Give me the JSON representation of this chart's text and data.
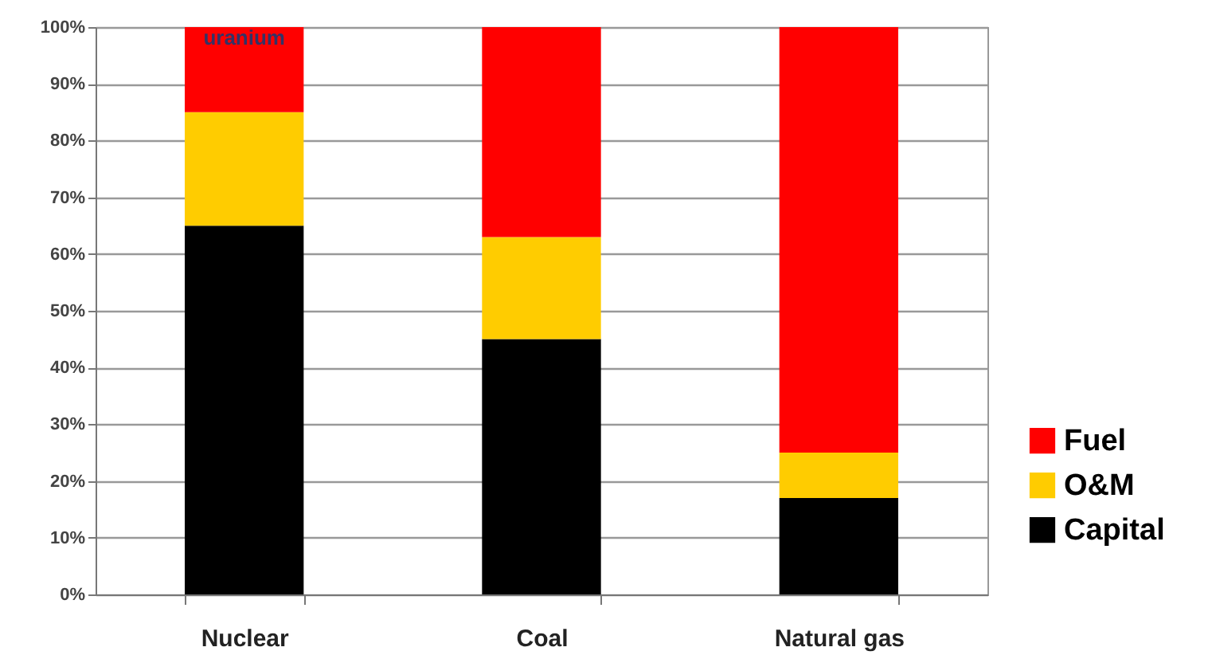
{
  "chart_data": {
    "type": "bar",
    "stacked": true,
    "categories": [
      "Nuclear",
      "Coal",
      "Natural gas"
    ],
    "series": [
      {
        "name": "Capital",
        "color": "#000000",
        "values": [
          65,
          45,
          17
        ]
      },
      {
        "name": "O&M",
        "color": "#ffcc00",
        "values": [
          20,
          18,
          8
        ]
      },
      {
        "name": "Fuel",
        "color": "#ff0000",
        "values": [
          15,
          37,
          75
        ]
      }
    ],
    "ylim": [
      0,
      100
    ],
    "yticks": [
      {
        "value": 0,
        "label": "0%"
      },
      {
        "value": 10,
        "label": "10%"
      },
      {
        "value": 20,
        "label": "20%"
      },
      {
        "value": 30,
        "label": "30%"
      },
      {
        "value": 40,
        "label": "40%"
      },
      {
        "value": 50,
        "label": "50%"
      },
      {
        "value": 60,
        "label": "60%"
      },
      {
        "value": 70,
        "label": "70%"
      },
      {
        "value": 80,
        "label": "80%"
      },
      {
        "value": 90,
        "label": "90%"
      },
      {
        "value": 100,
        "label": "100%"
      }
    ],
    "grid": "y",
    "legend": "bottom right",
    "annotations": [
      "uranium"
    ]
  }
}
